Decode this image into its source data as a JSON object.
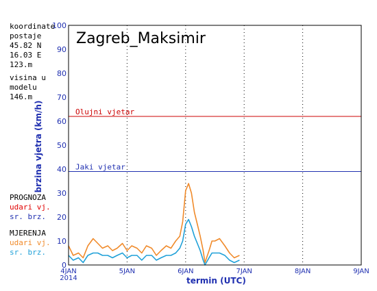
{
  "info": {
    "lines": [
      "koordinate",
      "postaje",
      "45.82 N",
      "16.03 E",
      "123.m",
      "visina u",
      "modelu",
      "146.m"
    ]
  },
  "legend": {
    "prognoza": "PROGNOZA",
    "prog_gust": "udari vj.",
    "prog_mean": "sr. brz.",
    "mjerenja": "MJERENJA",
    "meas_gust": "udari vj.",
    "meas_mean": "sr. brz."
  },
  "colors": {
    "prog_gust": "#e00000",
    "prog_mean": "#1f2fb0",
    "meas_gust": "#f08a2a",
    "meas_mean": "#1ea0d8",
    "olujni": "#cc0000",
    "jaki": "#1f2fb0",
    "axis_text": "#1f2fb0"
  },
  "chart_data": {
    "type": "line",
    "title": "Zagreb_Maksimir",
    "xlabel": "termin (UTC)",
    "ylabel": "brzina vjetra (km/h)",
    "ylim": [
      0,
      100
    ],
    "yticks": [
      0,
      10,
      20,
      30,
      40,
      50,
      60,
      70,
      80,
      90,
      100
    ],
    "xlim": [
      4,
      9
    ],
    "xticks": [
      {
        "x": 4,
        "label": "4JAN",
        "sub": "2014"
      },
      {
        "x": 5,
        "label": "5JAN"
      },
      {
        "x": 6,
        "label": "6JAN"
      },
      {
        "x": 7,
        "label": "7JAN"
      },
      {
        "x": 8,
        "label": "8JAN"
      },
      {
        "x": 9,
        "label": "9JAN"
      }
    ],
    "grid": true,
    "thresholds": [
      {
        "name": "Olujni vjetar",
        "value": 62
      },
      {
        "name": "Jaki vjetar",
        "value": 39
      }
    ],
    "series": [
      {
        "name": "MJERENJA udari vj.",
        "x": [
          4.0,
          4.08,
          4.17,
          4.25,
          4.33,
          4.42,
          4.5,
          4.58,
          4.67,
          4.75,
          4.83,
          4.92,
          5.0,
          5.08,
          5.17,
          5.25,
          5.33,
          5.42,
          5.5,
          5.58,
          5.67,
          5.75,
          5.83,
          5.9,
          5.95,
          6.0,
          6.05,
          6.1,
          6.15,
          6.2,
          6.25,
          6.3,
          6.33,
          6.4,
          6.45,
          6.5,
          6.58,
          6.67,
          6.75,
          6.83,
          6.92
        ],
        "values": [
          8,
          4,
          5,
          3,
          8,
          11,
          9,
          7,
          8,
          6,
          7,
          9,
          6,
          8,
          7,
          5,
          8,
          7,
          4,
          6,
          8,
          7,
          10,
          12,
          18,
          31,
          34,
          30,
          22,
          17,
          12,
          6,
          1,
          6,
          10,
          10,
          11,
          8,
          5,
          3,
          4
        ]
      },
      {
        "name": "MJERENJA sr. brz.",
        "x": [
          4.0,
          4.08,
          4.17,
          4.25,
          4.33,
          4.42,
          4.5,
          4.58,
          4.67,
          4.75,
          4.83,
          4.92,
          5.0,
          5.08,
          5.17,
          5.25,
          5.33,
          5.42,
          5.5,
          5.58,
          5.67,
          5.75,
          5.83,
          5.9,
          5.95,
          6.0,
          6.05,
          6.1,
          6.15,
          6.2,
          6.25,
          6.3,
          6.33,
          6.4,
          6.45,
          6.5,
          6.58,
          6.67,
          6.75,
          6.83,
          6.92
        ],
        "values": [
          4,
          2,
          3,
          1,
          4,
          5,
          5,
          4,
          4,
          3,
          4,
          5,
          3,
          4,
          4,
          2,
          4,
          4,
          2,
          3,
          4,
          4,
          5,
          7,
          10,
          17,
          19,
          16,
          12,
          9,
          6,
          2,
          0,
          3,
          5,
          5,
          5,
          4,
          2,
          1,
          2
        ]
      }
    ]
  }
}
